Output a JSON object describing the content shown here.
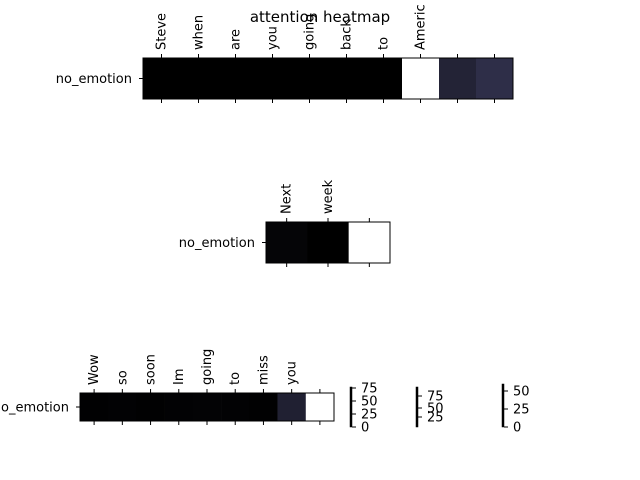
{
  "chart_data": {
    "type": "heatmap",
    "title": "attention heatmap",
    "panels": [
      {
        "row_label": "no_emotion",
        "tokens": [
          "Steve",
          "when",
          "are",
          "you",
          "going",
          "back",
          "to",
          "Americ",
          "",
          ""
        ],
        "values": [
          0.0,
          0.0,
          0.0,
          0.0,
          0.0,
          0.0,
          0.0,
          1.0,
          0.3,
          0.4
        ]
      },
      {
        "row_label": "no_emotion",
        "tokens": [
          "Next",
          "week",
          ""
        ],
        "values": [
          0.04,
          0.0,
          1.0
        ]
      },
      {
        "row_label": "no_emotion",
        "tokens": [
          "Wow",
          "so",
          "soon",
          "Im",
          "going",
          "to",
          "miss",
          "you",
          ""
        ],
        "values": [
          0.01,
          0.02,
          0.01,
          0.02,
          0.03,
          0.02,
          0.01,
          0.28,
          1.0
        ]
      }
    ],
    "colorbars": [
      {
        "ticks": [
          "75",
          "50",
          "25",
          "0"
        ]
      },
      {
        "ticks": [
          "75",
          "50",
          "25"
        ]
      },
      {
        "ticks": [
          "50",
          "25",
          "0"
        ]
      }
    ],
    "colormap": {
      "low": "#000000",
      "mid": "#3a3a5a",
      "high": "#ffffff"
    }
  }
}
